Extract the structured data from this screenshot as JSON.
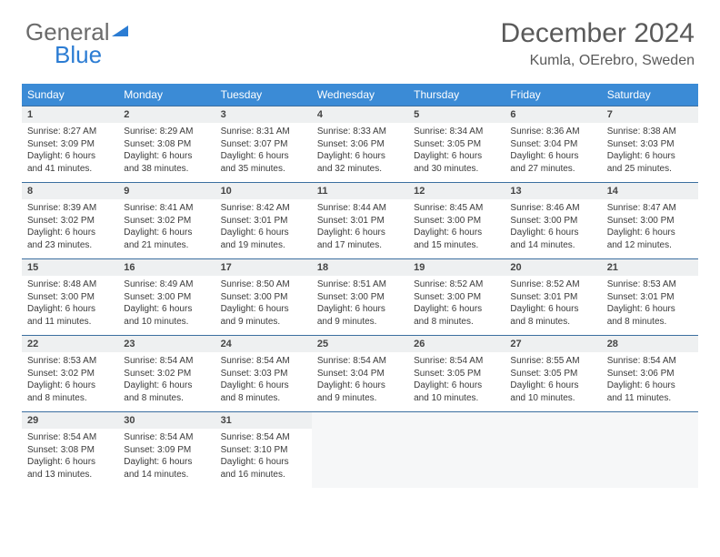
{
  "logo": {
    "text1": "General",
    "text2": "Blue"
  },
  "title": "December 2024",
  "location": "Kumla, OErebro, Sweden",
  "colors": {
    "header_bg": "#3b8bd6",
    "date_bg": "#eef0f1",
    "border": "#3b6fa0",
    "logo_gray": "#6b6b6b",
    "logo_blue": "#2b7cd3"
  },
  "dayNames": [
    "Sunday",
    "Monday",
    "Tuesday",
    "Wednesday",
    "Thursday",
    "Friday",
    "Saturday"
  ],
  "weeks": [
    [
      {
        "date": "1",
        "sunrise": "Sunrise: 8:27 AM",
        "sunset": "Sunset: 3:09 PM",
        "daylight": "Daylight: 6 hours and 41 minutes."
      },
      {
        "date": "2",
        "sunrise": "Sunrise: 8:29 AM",
        "sunset": "Sunset: 3:08 PM",
        "daylight": "Daylight: 6 hours and 38 minutes."
      },
      {
        "date": "3",
        "sunrise": "Sunrise: 8:31 AM",
        "sunset": "Sunset: 3:07 PM",
        "daylight": "Daylight: 6 hours and 35 minutes."
      },
      {
        "date": "4",
        "sunrise": "Sunrise: 8:33 AM",
        "sunset": "Sunset: 3:06 PM",
        "daylight": "Daylight: 6 hours and 32 minutes."
      },
      {
        "date": "5",
        "sunrise": "Sunrise: 8:34 AM",
        "sunset": "Sunset: 3:05 PM",
        "daylight": "Daylight: 6 hours and 30 minutes."
      },
      {
        "date": "6",
        "sunrise": "Sunrise: 8:36 AM",
        "sunset": "Sunset: 3:04 PM",
        "daylight": "Daylight: 6 hours and 27 minutes."
      },
      {
        "date": "7",
        "sunrise": "Sunrise: 8:38 AM",
        "sunset": "Sunset: 3:03 PM",
        "daylight": "Daylight: 6 hours and 25 minutes."
      }
    ],
    [
      {
        "date": "8",
        "sunrise": "Sunrise: 8:39 AM",
        "sunset": "Sunset: 3:02 PM",
        "daylight": "Daylight: 6 hours and 23 minutes."
      },
      {
        "date": "9",
        "sunrise": "Sunrise: 8:41 AM",
        "sunset": "Sunset: 3:02 PM",
        "daylight": "Daylight: 6 hours and 21 minutes."
      },
      {
        "date": "10",
        "sunrise": "Sunrise: 8:42 AM",
        "sunset": "Sunset: 3:01 PM",
        "daylight": "Daylight: 6 hours and 19 minutes."
      },
      {
        "date": "11",
        "sunrise": "Sunrise: 8:44 AM",
        "sunset": "Sunset: 3:01 PM",
        "daylight": "Daylight: 6 hours and 17 minutes."
      },
      {
        "date": "12",
        "sunrise": "Sunrise: 8:45 AM",
        "sunset": "Sunset: 3:00 PM",
        "daylight": "Daylight: 6 hours and 15 minutes."
      },
      {
        "date": "13",
        "sunrise": "Sunrise: 8:46 AM",
        "sunset": "Sunset: 3:00 PM",
        "daylight": "Daylight: 6 hours and 14 minutes."
      },
      {
        "date": "14",
        "sunrise": "Sunrise: 8:47 AM",
        "sunset": "Sunset: 3:00 PM",
        "daylight": "Daylight: 6 hours and 12 minutes."
      }
    ],
    [
      {
        "date": "15",
        "sunrise": "Sunrise: 8:48 AM",
        "sunset": "Sunset: 3:00 PM",
        "daylight": "Daylight: 6 hours and 11 minutes."
      },
      {
        "date": "16",
        "sunrise": "Sunrise: 8:49 AM",
        "sunset": "Sunset: 3:00 PM",
        "daylight": "Daylight: 6 hours and 10 minutes."
      },
      {
        "date": "17",
        "sunrise": "Sunrise: 8:50 AM",
        "sunset": "Sunset: 3:00 PM",
        "daylight": "Daylight: 6 hours and 9 minutes."
      },
      {
        "date": "18",
        "sunrise": "Sunrise: 8:51 AM",
        "sunset": "Sunset: 3:00 PM",
        "daylight": "Daylight: 6 hours and 9 minutes."
      },
      {
        "date": "19",
        "sunrise": "Sunrise: 8:52 AM",
        "sunset": "Sunset: 3:00 PM",
        "daylight": "Daylight: 6 hours and 8 minutes."
      },
      {
        "date": "20",
        "sunrise": "Sunrise: 8:52 AM",
        "sunset": "Sunset: 3:01 PM",
        "daylight": "Daylight: 6 hours and 8 minutes."
      },
      {
        "date": "21",
        "sunrise": "Sunrise: 8:53 AM",
        "sunset": "Sunset: 3:01 PM",
        "daylight": "Daylight: 6 hours and 8 minutes."
      }
    ],
    [
      {
        "date": "22",
        "sunrise": "Sunrise: 8:53 AM",
        "sunset": "Sunset: 3:02 PM",
        "daylight": "Daylight: 6 hours and 8 minutes."
      },
      {
        "date": "23",
        "sunrise": "Sunrise: 8:54 AM",
        "sunset": "Sunset: 3:02 PM",
        "daylight": "Daylight: 6 hours and 8 minutes."
      },
      {
        "date": "24",
        "sunrise": "Sunrise: 8:54 AM",
        "sunset": "Sunset: 3:03 PM",
        "daylight": "Daylight: 6 hours and 8 minutes."
      },
      {
        "date": "25",
        "sunrise": "Sunrise: 8:54 AM",
        "sunset": "Sunset: 3:04 PM",
        "daylight": "Daylight: 6 hours and 9 minutes."
      },
      {
        "date": "26",
        "sunrise": "Sunrise: 8:54 AM",
        "sunset": "Sunset: 3:05 PM",
        "daylight": "Daylight: 6 hours and 10 minutes."
      },
      {
        "date": "27",
        "sunrise": "Sunrise: 8:55 AM",
        "sunset": "Sunset: 3:05 PM",
        "daylight": "Daylight: 6 hours and 10 minutes."
      },
      {
        "date": "28",
        "sunrise": "Sunrise: 8:54 AM",
        "sunset": "Sunset: 3:06 PM",
        "daylight": "Daylight: 6 hours and 11 minutes."
      }
    ],
    [
      {
        "date": "29",
        "sunrise": "Sunrise: 8:54 AM",
        "sunset": "Sunset: 3:08 PM",
        "daylight": "Daylight: 6 hours and 13 minutes."
      },
      {
        "date": "30",
        "sunrise": "Sunrise: 8:54 AM",
        "sunset": "Sunset: 3:09 PM",
        "daylight": "Daylight: 6 hours and 14 minutes."
      },
      {
        "date": "31",
        "sunrise": "Sunrise: 8:54 AM",
        "sunset": "Sunset: 3:10 PM",
        "daylight": "Daylight: 6 hours and 16 minutes."
      },
      null,
      null,
      null,
      null
    ]
  ]
}
